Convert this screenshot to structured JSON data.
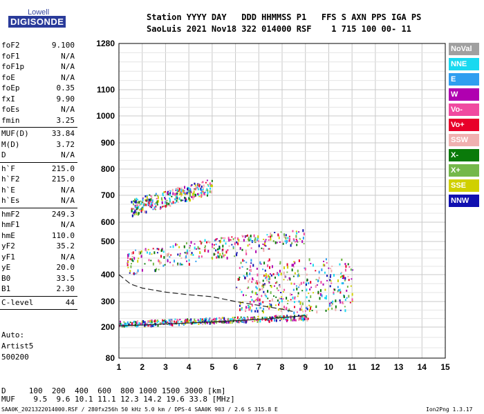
{
  "logo": {
    "top": "Lowell",
    "main": "DIGISONDE"
  },
  "header": {
    "line1": "Station YYYY DAY   DDD HHMMSS P1   FFS S AXN PPS IGA PS",
    "line2": "SaoLuis 2021 Nov18 322 014000 RSF    1 715 100 00- 11"
  },
  "params": [
    [
      {
        "k": "foF2",
        "v": "9.100"
      },
      {
        "k": "foF1",
        "v": "N/A"
      },
      {
        "k": "foF1p",
        "v": "N/A"
      },
      {
        "k": "foE",
        "v": "N/A"
      },
      {
        "k": "foEp",
        "v": "0.35"
      },
      {
        "k": "fxI",
        "v": "9.90"
      },
      {
        "k": "foEs",
        "v": "N/A"
      },
      {
        "k": "fmin",
        "v": "3.25"
      }
    ],
    [
      {
        "k": "MUF(D)",
        "v": "33.84"
      },
      {
        "k": "M(D)",
        "v": "3.72"
      },
      {
        "k": "D",
        "v": "N/A"
      }
    ],
    [
      {
        "k": "h`F",
        "v": "215.0"
      },
      {
        "k": "h`F2",
        "v": "215.0"
      },
      {
        "k": "h`E",
        "v": "N/A"
      },
      {
        "k": "h`Es",
        "v": "N/A"
      }
    ],
    [
      {
        "k": "hmF2",
        "v": "249.3"
      },
      {
        "k": "hmF1",
        "v": "N/A"
      },
      {
        "k": "hmE",
        "v": "110.0"
      },
      {
        "k": "yF2",
        "v": "35.2"
      },
      {
        "k": "yF1",
        "v": "N/A"
      },
      {
        "k": "yE",
        "v": "20.0"
      },
      {
        "k": "B0",
        "v": "33.5"
      },
      {
        "k": "B1",
        "v": "2.30"
      }
    ],
    [
      {
        "k": "C-level",
        "v": "44"
      }
    ]
  ],
  "side_info": {
    "auto": "Auto:",
    "artist": "Artist5",
    "ver": "500200"
  },
  "bottom": {
    "line1": "D     100  200  400  600  800 1000 1500 3000 [km]",
    "line2": "MUF    9.5  9.6 10.1 11.1 12.3 14.2 19.6 33.8 [MHz]"
  },
  "footer": {
    "left": "SAA0K_2021322014000.RSF / 280fx256h 50 kHz 5.0 km / DPS-4 SAA0K 903 / 2.6 S 315.8 E",
    "right": "Ion2Png 1.3.17"
  },
  "legend": [
    {
      "label": "NoVal",
      "color": "#a0a0a0"
    },
    {
      "label": "NNE",
      "color": "#19d9f0"
    },
    {
      "label": "E",
      "color": "#2e9ef0"
    },
    {
      "label": "W",
      "color": "#b000b0"
    },
    {
      "label": "Vo-",
      "color": "#f04aa0"
    },
    {
      "label": "Vo+",
      "color": "#e8002a"
    },
    {
      "label": "SSW",
      "color": "#f0b0b0"
    },
    {
      "label": "X-",
      "color": "#0a7a0a"
    },
    {
      "label": "X+",
      "color": "#74b84a"
    },
    {
      "label": "SSE",
      "color": "#d0d000"
    },
    {
      "label": "NNW",
      "color": "#1010b0"
    }
  ],
  "chart_data": {
    "type": "scatter",
    "title": "",
    "xlabel": "",
    "ylabel": "",
    "xlim": [
      1,
      15
    ],
    "ylim": [
      80,
      1280
    ],
    "x_ticks": [
      1,
      2,
      3,
      4,
      5,
      6,
      7,
      8,
      9,
      10,
      11,
      12,
      13,
      14,
      15
    ],
    "y_ticks": [
      80,
      200,
      300,
      400,
      500,
      600,
      700,
      800,
      900,
      1000,
      1100,
      1280
    ],
    "x_scale": "linear",
    "y_scale": "nonlinear (secant-type height scale)",
    "grid": true,
    "legend_position": "right",
    "traces": [
      {
        "name": "F2 first hop",
        "x_range": [
          1.0,
          9.1
        ],
        "y_range": [
          205,
          250
        ]
      },
      {
        "name": "F2 second hop",
        "x_range": [
          1.3,
          9.0
        ],
        "y_range": [
          400,
          560
        ]
      },
      {
        "name": "F2 third hop",
        "x_range": [
          1.5,
          5.0
        ],
        "y_range": [
          625,
          760
        ]
      },
      {
        "name": "spread F cluster",
        "x_range": [
          6.0,
          11.0
        ],
        "y_range": [
          260,
          450
        ]
      }
    ],
    "profile_line": {
      "x": [
        1.0,
        2.0,
        3.0,
        4.0,
        5.0,
        6.0,
        7.0,
        8.0,
        9.0
      ],
      "y": [
        205,
        208,
        212,
        216,
        220,
        225,
        230,
        237,
        245
      ]
    },
    "dashed_line": {
      "x": [
        1.0,
        1.5,
        2.0,
        3.0,
        4.0,
        5.0,
        6.0,
        7.0,
        8.0,
        8.5
      ],
      "y": [
        400,
        365,
        350,
        335,
        325,
        318,
        300,
        285,
        270,
        260
      ]
    }
  }
}
